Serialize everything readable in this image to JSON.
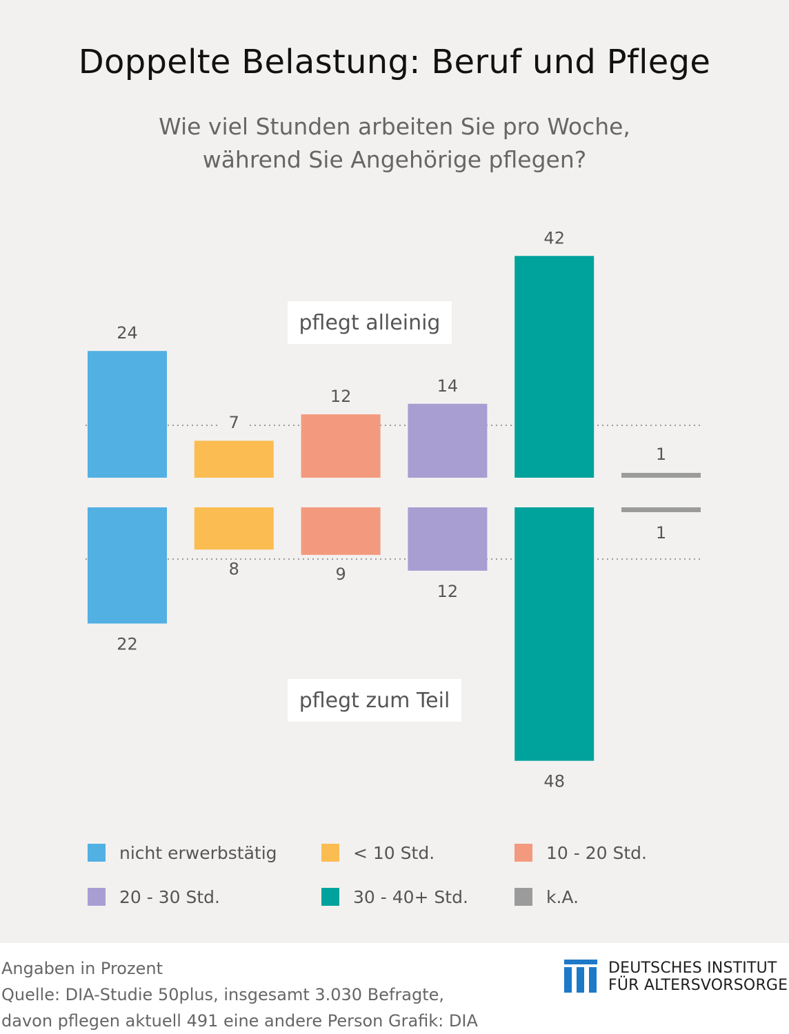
{
  "title": "Doppelte Belastung: Beruf und Pflege",
  "subtitle": [
    "Wie viel Stunden arbeiten Sie pro Woche,",
    "während Sie Angehörige pflegen?"
  ],
  "chart_data": {
    "type": "bar",
    "title": "Doppelte Belastung: Beruf und Pflege",
    "categories": [
      "nicht erwerbstätig",
      "< 10 Std.",
      "10 - 20 Std.",
      "20 - 30 Std.",
      "30 - 40+ Std.",
      "k.A."
    ],
    "colors": [
      "#52b0e3",
      "#fbbd52",
      "#f39a7e",
      "#a89ed2",
      "#00a29c",
      "#9b9b9b"
    ],
    "series": [
      {
        "name": "pflegt alleinig",
        "values": [
          24,
          7,
          12,
          14,
          42,
          1
        ]
      },
      {
        "name": "pflegt zum Teil",
        "values": [
          22,
          8,
          9,
          12,
          48,
          1
        ]
      }
    ],
    "unit": "Prozent",
    "grid": "dotted reference lines"
  },
  "labels": {
    "upper": "pflegt alleinig",
    "lower": "pflegt zum Teil"
  },
  "legend": [
    {
      "label": "nicht erwerbstätig",
      "color": "#52b0e3"
    },
    {
      "label": "< 10 Std.",
      "color": "#fbbd52"
    },
    {
      "label": "10 - 20 Std.",
      "color": "#f39a7e"
    },
    {
      "label": "20 - 30 Std.",
      "color": "#a89ed2"
    },
    {
      "label": "30 - 40+ Std.",
      "color": "#00a29c"
    },
    {
      "label": "k.A.",
      "color": "#9b9b9b"
    }
  ],
  "footer": {
    "line1": "Angaben in Prozent",
    "line2": "Quelle: DIA-Studie 50plus, insgesamt 3.030 Befragte,",
    "line3": "davon pflegen aktuell 491 eine andere Person  Grafik: DIA"
  },
  "logo": {
    "line1": "DEUTSCHES INSTITUT",
    "line2": "FÜR ALTERSVORSORGE",
    "color": "#1e79c9"
  }
}
